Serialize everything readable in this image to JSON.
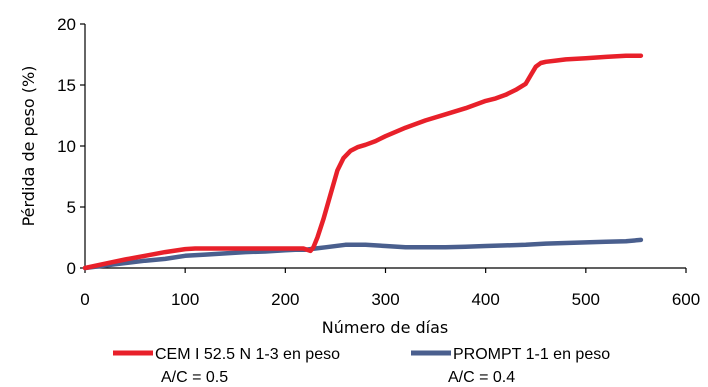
{
  "chart_data": {
    "type": "line",
    "title": "",
    "xlabel": "Número de días",
    "ylabel": "Pérdida de peso (%)",
    "xlim": [
      0,
      600
    ],
    "ylim": [
      0,
      20
    ],
    "x_ticks": [
      "0",
      "100",
      "200",
      "300",
      "400",
      "500",
      "600"
    ],
    "y_ticks": [
      "0",
      "5",
      "10",
      "15",
      "20"
    ],
    "grid": false,
    "legend_position": "bottom",
    "series": [
      {
        "name": "CEM I 52.5 N 1-3 en peso",
        "name_line2": "A/C = 0.5",
        "color": "#e8202a",
        "x": [
          0,
          20,
          40,
          60,
          80,
          100,
          110,
          150,
          200,
          218,
          225,
          228,
          232,
          238,
          245,
          252,
          258,
          265,
          272,
          280,
          290,
          300,
          320,
          340,
          360,
          380,
          400,
          410,
          420,
          430,
          440,
          445,
          450,
          455,
          460,
          470,
          480,
          500,
          520,
          540,
          555
        ],
        "y": [
          0,
          0.35,
          0.7,
          1.0,
          1.3,
          1.55,
          1.6,
          1.6,
          1.6,
          1.6,
          1.4,
          1.7,
          2.5,
          4.0,
          6.0,
          8.0,
          9.0,
          9.6,
          9.9,
          10.1,
          10.4,
          10.8,
          11.5,
          12.1,
          12.6,
          13.1,
          13.7,
          13.9,
          14.2,
          14.6,
          15.1,
          15.8,
          16.5,
          16.8,
          16.9,
          17.0,
          17.1,
          17.2,
          17.3,
          17.4,
          17.4
        ]
      },
      {
        "name": "PROMPT 1-1 en peso",
        "name_line2": "A/C = 0.4",
        "color": "#4a5f8e",
        "x": [
          0,
          30,
          60,
          80,
          100,
          120,
          140,
          160,
          180,
          200,
          210,
          220,
          230,
          240,
          260,
          280,
          300,
          320,
          340,
          360,
          380,
          400,
          420,
          440,
          460,
          480,
          500,
          520,
          540,
          555
        ],
        "y": [
          0,
          0.3,
          0.6,
          0.75,
          1.0,
          1.1,
          1.2,
          1.3,
          1.35,
          1.45,
          1.5,
          1.5,
          1.6,
          1.7,
          1.9,
          1.9,
          1.8,
          1.7,
          1.7,
          1.7,
          1.75,
          1.8,
          1.85,
          1.9,
          2.0,
          2.05,
          2.1,
          2.15,
          2.2,
          2.3
        ]
      }
    ]
  }
}
